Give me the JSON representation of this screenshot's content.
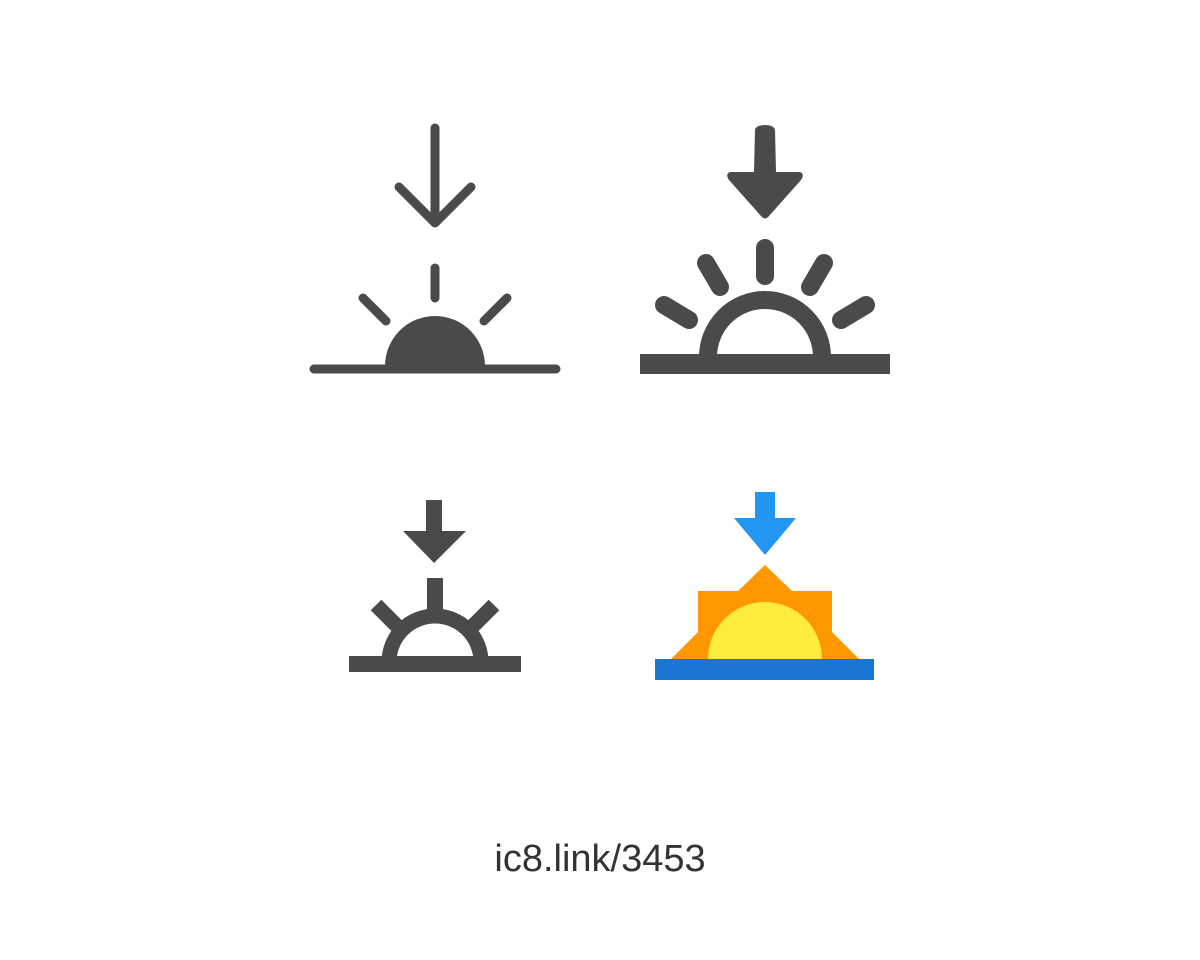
{
  "caption": {
    "link_text": "ic8.link/3453"
  },
  "icons": [
    {
      "name": "sunset-icon",
      "style": "thin-outline"
    },
    {
      "name": "sunset-icon",
      "style": "bold-outline"
    },
    {
      "name": "sunset-icon",
      "style": "square-outline"
    },
    {
      "name": "sunset-icon",
      "style": "color"
    }
  ],
  "colors": {
    "glyph": "#4a4a4a",
    "arrow_blue": "#2196f3",
    "horizon_blue": "#1976d2",
    "sun_orange": "#ff9800",
    "sun_yellow": "#ffeb3b"
  }
}
